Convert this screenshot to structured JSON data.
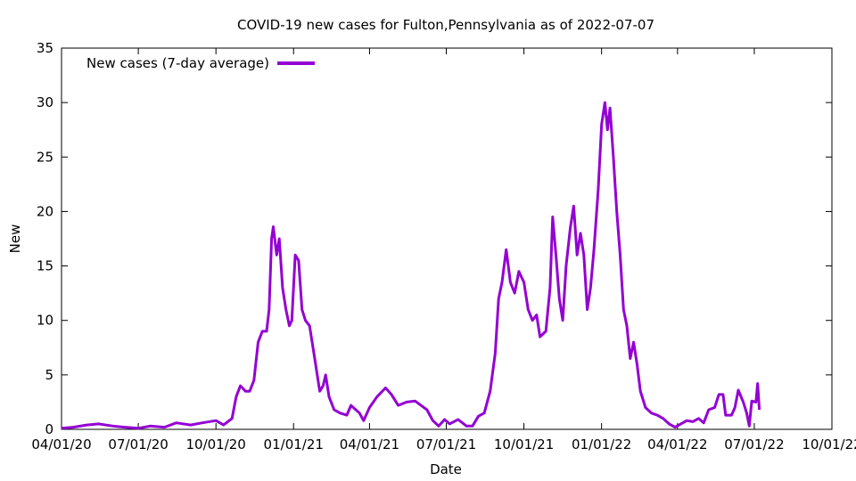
{
  "chart_data": {
    "type": "line",
    "title": "COVID-19 new cases for Fulton,Pennsylvania as of 2022-07-07",
    "xlabel": "Date",
    "ylabel": "New",
    "xlim": [
      "2020-04-01",
      "2022-10-01"
    ],
    "ylim": [
      0,
      35
    ],
    "y_ticks": [
      0,
      5,
      10,
      15,
      20,
      25,
      30,
      35
    ],
    "x_ticks": [
      {
        "date": "2020-04-01",
        "label": "04/01/20"
      },
      {
        "date": "2020-07-01",
        "label": "07/01/20"
      },
      {
        "date": "2020-10-01",
        "label": "10/01/20"
      },
      {
        "date": "2021-01-01",
        "label": "01/01/21"
      },
      {
        "date": "2021-04-01",
        "label": "04/01/21"
      },
      {
        "date": "2021-07-01",
        "label": "07/01/21"
      },
      {
        "date": "2021-10-01",
        "label": "10/01/21"
      },
      {
        "date": "2022-01-01",
        "label": "01/01/22"
      },
      {
        "date": "2022-04-01",
        "label": "04/01/22"
      },
      {
        "date": "2022-07-01",
        "label": "07/01/22"
      },
      {
        "date": "2022-10-01",
        "label": "10/01/22"
      }
    ],
    "grid": false,
    "legend_position": "top-left",
    "series": [
      {
        "name": "New cases (7-day average)",
        "color": "#9400d3",
        "points": [
          [
            "2020-04-01",
            0.1
          ],
          [
            "2020-04-15",
            0.2
          ],
          [
            "2020-05-01",
            0.4
          ],
          [
            "2020-05-15",
            0.5
          ],
          [
            "2020-06-01",
            0.3
          ],
          [
            "2020-06-15",
            0.2
          ],
          [
            "2020-07-01",
            0.1
          ],
          [
            "2020-07-15",
            0.3
          ],
          [
            "2020-08-01",
            0.2
          ],
          [
            "2020-08-15",
            0.6
          ],
          [
            "2020-09-01",
            0.4
          ],
          [
            "2020-09-15",
            0.6
          ],
          [
            "2020-10-01",
            0.8
          ],
          [
            "2020-10-10",
            0.4
          ],
          [
            "2020-10-20",
            1.0
          ],
          [
            "2020-10-25",
            3.0
          ],
          [
            "2020-10-30",
            4.0
          ],
          [
            "2020-11-05",
            3.5
          ],
          [
            "2020-11-10",
            3.5
          ],
          [
            "2020-11-15",
            4.5
          ],
          [
            "2020-11-20",
            8.0
          ],
          [
            "2020-11-25",
            9.0
          ],
          [
            "2020-11-30",
            9.0
          ],
          [
            "2020-12-03",
            11.0
          ],
          [
            "2020-12-06",
            17.5
          ],
          [
            "2020-12-08",
            18.6
          ],
          [
            "2020-12-12",
            16.0
          ],
          [
            "2020-12-15",
            17.5
          ],
          [
            "2020-12-19",
            13.0
          ],
          [
            "2020-12-23",
            11.0
          ],
          [
            "2020-12-27",
            9.5
          ],
          [
            "2020-12-30",
            10.0
          ],
          [
            "2021-01-03",
            16.0
          ],
          [
            "2021-01-07",
            15.5
          ],
          [
            "2021-01-11",
            11.0
          ],
          [
            "2021-01-15",
            10.0
          ],
          [
            "2021-01-20",
            9.5
          ],
          [
            "2021-01-25",
            7.0
          ],
          [
            "2021-02-01",
            3.5
          ],
          [
            "2021-02-05",
            4.0
          ],
          [
            "2021-02-08",
            5.0
          ],
          [
            "2021-02-12",
            3.0
          ],
          [
            "2021-02-18",
            1.8
          ],
          [
            "2021-02-25",
            1.5
          ],
          [
            "2021-03-05",
            1.3
          ],
          [
            "2021-03-10",
            2.2
          ],
          [
            "2021-03-20",
            1.5
          ],
          [
            "2021-03-25",
            0.8
          ],
          [
            "2021-04-01",
            2.0
          ],
          [
            "2021-04-10",
            3.0
          ],
          [
            "2021-04-20",
            3.8
          ],
          [
            "2021-04-27",
            3.2
          ],
          [
            "2021-05-05",
            2.2
          ],
          [
            "2021-05-15",
            2.5
          ],
          [
            "2021-05-25",
            2.6
          ],
          [
            "2021-06-01",
            2.2
          ],
          [
            "2021-06-08",
            1.8
          ],
          [
            "2021-06-15",
            0.8
          ],
          [
            "2021-06-22",
            0.3
          ],
          [
            "2021-06-29",
            0.9
          ],
          [
            "2021-07-05",
            0.5
          ],
          [
            "2021-07-15",
            0.9
          ],
          [
            "2021-07-25",
            0.3
          ],
          [
            "2021-08-01",
            0.3
          ],
          [
            "2021-08-08",
            1.2
          ],
          [
            "2021-08-15",
            1.5
          ],
          [
            "2021-08-22",
            3.5
          ],
          [
            "2021-08-28",
            7.0
          ],
          [
            "2021-09-01",
            12.0
          ],
          [
            "2021-09-05",
            13.5
          ],
          [
            "2021-09-10",
            16.5
          ],
          [
            "2021-09-15",
            13.5
          ],
          [
            "2021-09-20",
            12.5
          ],
          [
            "2021-09-25",
            14.5
          ],
          [
            "2021-10-01",
            13.5
          ],
          [
            "2021-10-06",
            11.0
          ],
          [
            "2021-10-11",
            10.0
          ],
          [
            "2021-10-16",
            10.5
          ],
          [
            "2021-10-20",
            8.5
          ],
          [
            "2021-10-27",
            9.0
          ],
          [
            "2021-11-01",
            13.0
          ],
          [
            "2021-11-04",
            19.5
          ],
          [
            "2021-11-08",
            16.0
          ],
          [
            "2021-11-12",
            12.0
          ],
          [
            "2021-11-16",
            10.0
          ],
          [
            "2021-11-20",
            15.0
          ],
          [
            "2021-11-25",
            18.5
          ],
          [
            "2021-11-29",
            20.5
          ],
          [
            "2021-12-03",
            16.0
          ],
          [
            "2021-12-07",
            18.0
          ],
          [
            "2021-12-11",
            16.0
          ],
          [
            "2021-12-15",
            11.0
          ],
          [
            "2021-12-19",
            13.0
          ],
          [
            "2021-12-23",
            16.5
          ],
          [
            "2021-12-28",
            22.0
          ],
          [
            "2022-01-01",
            28.0
          ],
          [
            "2022-01-05",
            30.0
          ],
          [
            "2022-01-08",
            27.5
          ],
          [
            "2022-01-11",
            29.5
          ],
          [
            "2022-01-15",
            25.0
          ],
          [
            "2022-01-19",
            20.0
          ],
          [
            "2022-01-23",
            16.0
          ],
          [
            "2022-01-27",
            11.0
          ],
          [
            "2022-01-31",
            9.5
          ],
          [
            "2022-02-04",
            6.5
          ],
          [
            "2022-02-08",
            8.0
          ],
          [
            "2022-02-12",
            6.0
          ],
          [
            "2022-02-16",
            3.5
          ],
          [
            "2022-02-22",
            2.0
          ],
          [
            "2022-03-01",
            1.5
          ],
          [
            "2022-03-08",
            1.3
          ],
          [
            "2022-03-15",
            1.0
          ],
          [
            "2022-03-22",
            0.5
          ],
          [
            "2022-03-29",
            0.2
          ],
          [
            "2022-04-05",
            0.5
          ],
          [
            "2022-04-12",
            0.8
          ],
          [
            "2022-04-19",
            0.7
          ],
          [
            "2022-04-26",
            1.0
          ],
          [
            "2022-05-02",
            0.6
          ],
          [
            "2022-05-08",
            1.8
          ],
          [
            "2022-05-15",
            2.0
          ],
          [
            "2022-05-20",
            3.2
          ],
          [
            "2022-05-25",
            3.2
          ],
          [
            "2022-05-28",
            1.3
          ],
          [
            "2022-06-04",
            1.3
          ],
          [
            "2022-06-08",
            2.0
          ],
          [
            "2022-06-12",
            3.6
          ],
          [
            "2022-06-18",
            2.5
          ],
          [
            "2022-06-22",
            1.5
          ],
          [
            "2022-06-25",
            0.3
          ],
          [
            "2022-06-28",
            2.6
          ],
          [
            "2022-07-03",
            2.5
          ],
          [
            "2022-07-05",
            4.2
          ],
          [
            "2022-07-07",
            1.8
          ]
        ]
      }
    ]
  }
}
